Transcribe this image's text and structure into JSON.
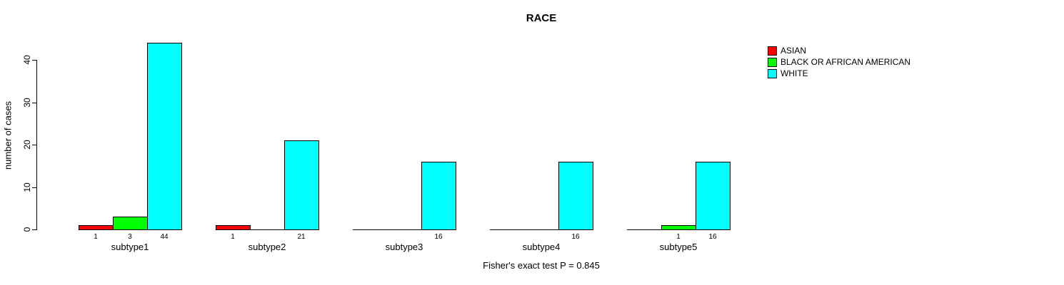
{
  "title": "RACE",
  "chart_data": {
    "type": "bar",
    "grouped": true,
    "title": "RACE",
    "xlabel": "",
    "ylabel": "number of cases",
    "ylim": [
      0,
      44
    ],
    "yticks": [
      0,
      10,
      20,
      30,
      40
    ],
    "grid": false,
    "legend_position": "top-right",
    "categories": [
      "subtype1",
      "subtype2",
      "subtype3",
      "subtype4",
      "subtype5"
    ],
    "series": [
      {
        "name": "ASIAN",
        "color": "#ff0000",
        "values": [
          1,
          1,
          0,
          0,
          0
        ]
      },
      {
        "name": "BLACK OR AFRICAN AMERICAN",
        "color": "#00ff00",
        "values": [
          3,
          0,
          0,
          0,
          1
        ]
      },
      {
        "name": "WHITE",
        "color": "#00ffff",
        "values": [
          44,
          21,
          16,
          16,
          16
        ]
      }
    ],
    "bar_value_labels": "shown under each nonzero bar",
    "annotation": "Fisher's exact test P = 0.845"
  }
}
